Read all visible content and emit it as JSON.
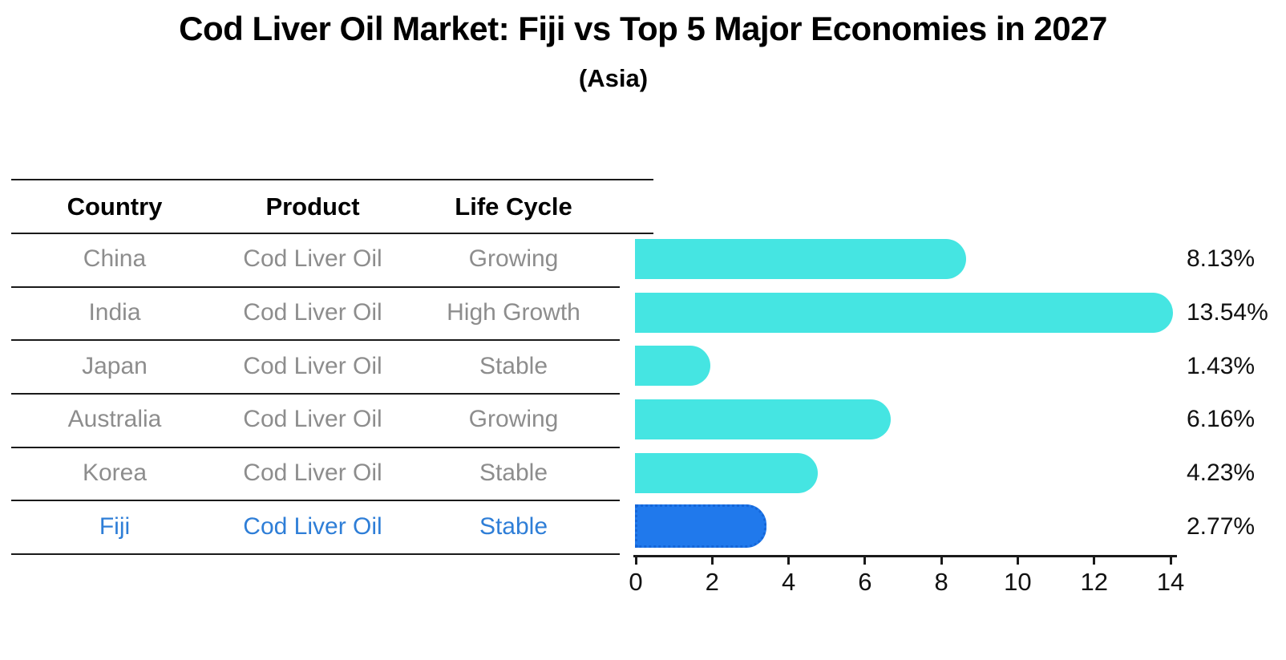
{
  "title": "Cod Liver Oil Market: Fiji vs Top 5 Major Economies in 2027",
  "subtitle": "(Asia)",
  "table": {
    "headers": [
      "Country",
      "Product",
      "Life Cycle"
    ],
    "rows": [
      {
        "country": "China",
        "product": "Cod Liver Oil",
        "life_cycle": "Growing",
        "highlight": false
      },
      {
        "country": "India",
        "product": "Cod Liver Oil",
        "life_cycle": "High Growth",
        "highlight": false
      },
      {
        "country": "Japan",
        "product": "Cod Liver Oil",
        "life_cycle": "Stable",
        "highlight": false
      },
      {
        "country": "Australia",
        "product": "Cod Liver Oil",
        "life_cycle": "Growing",
        "highlight": false
      },
      {
        "country": "Korea",
        "product": "Cod Liver Oil",
        "life_cycle": "Stable",
        "highlight": false
      },
      {
        "country": "Fiji",
        "product": "Cod Liver Oil",
        "life_cycle": "Stable",
        "highlight": true
      }
    ]
  },
  "chart_data": {
    "type": "bar",
    "orientation": "horizontal",
    "title": "Cod Liver Oil Market: Fiji vs Top 5 Major Economies in 2027",
    "subtitle": "(Asia)",
    "categories": [
      "China",
      "India",
      "Japan",
      "Australia",
      "Korea",
      "Fiji"
    ],
    "values": [
      8.13,
      13.54,
      1.43,
      6.16,
      4.23,
      2.77
    ],
    "value_labels": [
      "8.13%",
      "13.54%",
      "1.43%",
      "6.16%",
      "4.23%",
      "2.77%"
    ],
    "xlim": [
      0,
      14
    ],
    "xticks": [
      0,
      2,
      4,
      6,
      8,
      10,
      12,
      14
    ],
    "xlabel": "",
    "ylabel": "",
    "grid": false,
    "legend_position": "none",
    "bar_color": "#45e5e2",
    "highlight_index": 5,
    "highlight_bar_color": "#2079ec",
    "highlight_border_color": "#1566d8",
    "highlight_text_color": "#2e7ed7",
    "row_text_color": "#8d8d8d",
    "line_color": "#1a1a1a"
  }
}
